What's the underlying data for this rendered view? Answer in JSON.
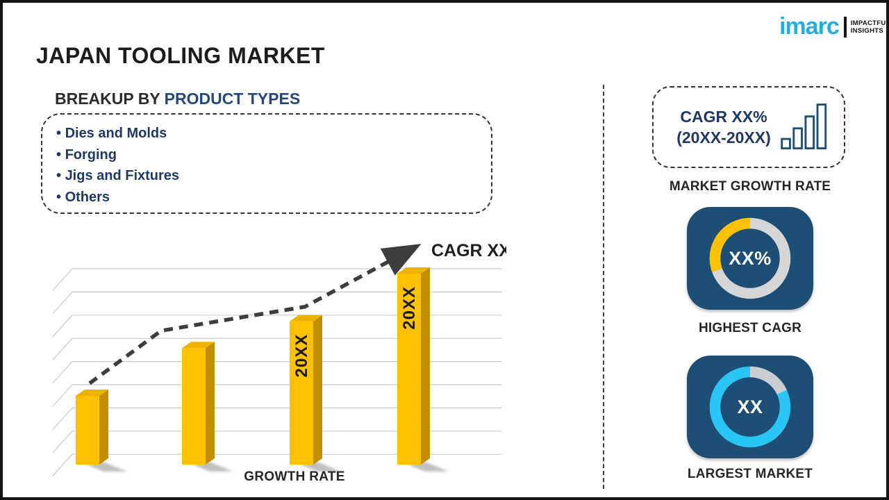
{
  "page": {
    "title": "JAPAN TOOLING MARKET"
  },
  "logo": {
    "brand": "imarc",
    "tagline1": "IMPACTFUL",
    "tagline2": "INSIGHTS",
    "brand_color": "#29ABE2"
  },
  "breakup": {
    "prefix": "BREAKUP BY ",
    "highlight": "PRODUCT TYPES",
    "items": [
      "Dies and Molds",
      "Forging",
      "Jigs and Fixtures",
      "Others"
    ]
  },
  "chart_data": {
    "type": "bar",
    "title": "",
    "xlabel": "GROWTH RATE",
    "ylabel": "",
    "categories": [
      "",
      "",
      "20XX",
      "20XX"
    ],
    "values_pct_of_max": [
      36,
      61,
      75,
      100
    ],
    "bar_labels": [
      "",
      "",
      "20XX",
      "20XX"
    ],
    "bar_color": "#FFC000",
    "bar_side_color": "#C28E00",
    "bar_top_color": "#EDB200",
    "label_color": "#1a1a1a",
    "trend": {
      "label": "CAGR XX%",
      "style": "dashed-arrow",
      "color": "#3D3D3D"
    },
    "axis": {
      "gridline_count": 9,
      "grid_color": "#C9C9C9",
      "style": "3d-perspective",
      "y_ticks_visible": false
    }
  },
  "sidebar": {
    "growth_card": {
      "line1": "CAGR XX%",
      "line2": "(20XX-20XX)",
      "caption": "MARKET GROWTH RATE",
      "icon_color": "#1F4E79"
    },
    "highest_cagr": {
      "value": "XX%",
      "caption": "HIGHEST CAGR",
      "segment_color": "#FFC000",
      "track_color": "#D6D6D6",
      "segment_start_deg": 250,
      "segment_sweep_deg": 110
    },
    "largest_market": {
      "value": "XX",
      "caption": "LARGEST MARKET",
      "segment_color": "#C9CDD1",
      "track_color": "#29C5F5",
      "segment_start_deg": 0,
      "segment_sweep_deg": 65
    }
  },
  "colors": {
    "accent_navy": "#1F3864",
    "heading_navy": "#24477E",
    "card_bg": "#1E4E74",
    "text_dark": "#262626"
  }
}
